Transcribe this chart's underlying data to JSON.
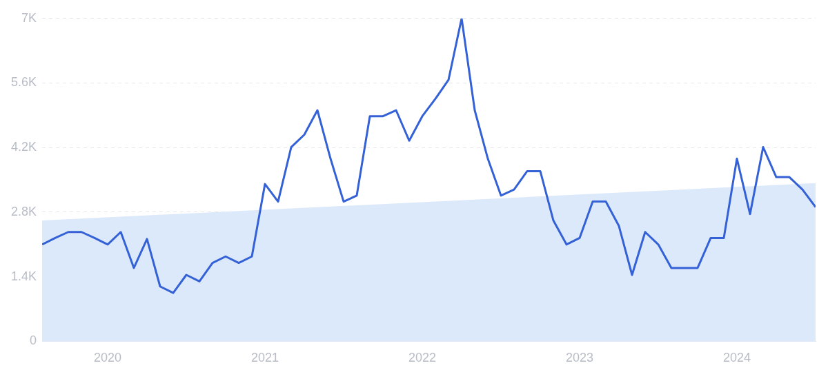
{
  "chart_data": {
    "type": "line",
    "x": [
      "2019-08",
      "2019-09",
      "2019-10",
      "2019-11",
      "2019-12",
      "2020-01",
      "2020-02",
      "2020-03",
      "2020-04",
      "2020-05",
      "2020-06",
      "2020-07",
      "2020-08",
      "2020-09",
      "2020-10",
      "2020-11",
      "2020-12",
      "2021-01",
      "2021-02",
      "2021-03",
      "2021-04",
      "2021-05",
      "2021-06",
      "2021-07",
      "2021-08",
      "2021-09",
      "2021-10",
      "2021-11",
      "2021-12",
      "2022-01",
      "2022-02",
      "2022-03",
      "2022-04",
      "2022-05",
      "2022-06",
      "2022-07",
      "2022-08",
      "2022-09",
      "2022-10",
      "2022-11",
      "2022-12",
      "2023-01",
      "2023-02",
      "2023-03",
      "2023-04",
      "2023-05",
      "2023-06",
      "2023-07",
      "2023-08",
      "2023-09",
      "2023-10",
      "2023-11",
      "2023-12",
      "2024-01",
      "2024-02",
      "2024-03",
      "2024-04",
      "2024-05",
      "2024-06",
      "2024-07"
    ],
    "series": [
      {
        "type": "area",
        "color": "#dce9fa",
        "x": [
          "2019-08",
          "2024-07"
        ],
        "values": [
          2620,
          3430
        ]
      },
      {
        "color": "#3461d6",
        "values": [
          2100,
          2240,
          2370,
          2370,
          2240,
          2100,
          2370,
          1590,
          2220,
          1190,
          1050,
          1440,
          1300,
          1700,
          1840,
          1700,
          1840,
          3410,
          3030,
          4210,
          4480,
          5010,
          3960,
          3030,
          3160,
          4880,
          4880,
          5010,
          4350,
          4880,
          5260,
          5670,
          7000,
          5010,
          3960,
          3160,
          3290,
          3690,
          3690,
          2620,
          2100,
          2240,
          3030,
          3030,
          2500,
          1440,
          2370,
          2100,
          1590,
          1590,
          1590,
          2240,
          2240,
          3960,
          2760,
          4210,
          3560,
          3560,
          3290,
          2910
        ]
      }
    ],
    "xlim": [
      "2019-08",
      "2024-07"
    ],
    "xticks": [
      {
        "value": "2020",
        "label": "2020"
      },
      {
        "value": "2021",
        "label": "2021"
      },
      {
        "value": "2022",
        "label": "2022"
      },
      {
        "value": "2023",
        "label": "2023"
      },
      {
        "value": "2024",
        "label": "2024"
      }
    ],
    "ylim": [
      0,
      7000
    ],
    "yticks": [
      0,
      {
        "value": 1400,
        "label": "1.4K"
      },
      {
        "value": 2800,
        "label": "2.8K"
      },
      {
        "value": 4200,
        "label": "4.2K"
      },
      {
        "value": 5600,
        "label": "5.6K"
      },
      {
        "value": 7000,
        "label": "7K"
      }
    ],
    "grid": "y",
    "legend": false,
    "marker": "none",
    "line_style": "solid"
  }
}
